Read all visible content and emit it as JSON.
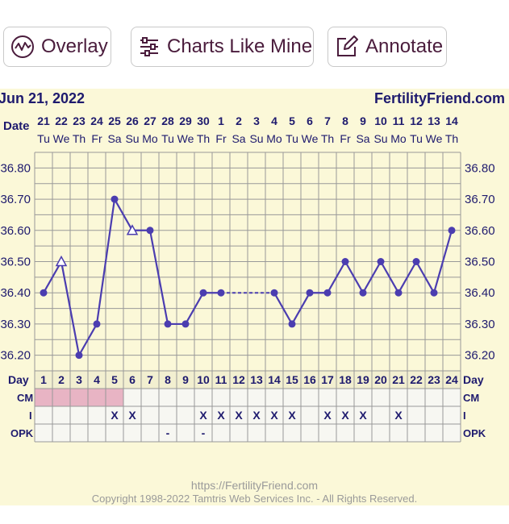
{
  "toolbar": {
    "overlay_label": "Overlay",
    "charts_like_mine_label": "Charts Like Mine",
    "annotate_label": "Annotate"
  },
  "header": {
    "date_title": "Jun 21, 2022",
    "brand": "FertilityFriend.com"
  },
  "footer": {
    "url": "https://FertilityFriend.com",
    "copyright": "Copyright 1998-2022 Tamtris Web Services Inc. - All Rights Reserved."
  },
  "colors": {
    "background": "#fbf8d8",
    "grid": "#999999",
    "line": "#4b3db0",
    "text": "#1e1a6e",
    "cm_highlight": "#e8b4c4"
  },
  "chart_data": {
    "type": "line",
    "title": "",
    "row_labels": {
      "date": "Date",
      "day": "Day",
      "cm": "CM",
      "i": "I",
      "opk": "OPK"
    },
    "dates": [
      "21",
      "22",
      "23",
      "24",
      "25",
      "26",
      "27",
      "28",
      "29",
      "30",
      "1",
      "2",
      "3",
      "4",
      "5",
      "6",
      "7",
      "8",
      "9",
      "10",
      "11",
      "12",
      "13",
      "14"
    ],
    "weekdays": [
      "Tu",
      "We",
      "Th",
      "Fr",
      "Sa",
      "Su",
      "Mo",
      "Tu",
      "We",
      "Th",
      "Fr",
      "Sa",
      "Su",
      "Mo",
      "Tu",
      "We",
      "Th",
      "Fr",
      "Sa",
      "Su",
      "Mo",
      "Tu",
      "We",
      "Th"
    ],
    "days": [
      1,
      2,
      3,
      4,
      5,
      6,
      7,
      8,
      9,
      10,
      11,
      12,
      13,
      14,
      15,
      16,
      17,
      18,
      19,
      20,
      21,
      22,
      23,
      24
    ],
    "y_ticks": [
      "36.80",
      "36.70",
      "36.60",
      "36.50",
      "36.40",
      "36.30",
      "36.20"
    ],
    "ylim": [
      36.15,
      36.85
    ],
    "temperatures": [
      36.4,
      36.5,
      36.2,
      36.3,
      36.7,
      36.6,
      36.6,
      36.3,
      36.3,
      36.4,
      36.4,
      null,
      null,
      36.4,
      36.3,
      36.4,
      36.4,
      36.5,
      36.4,
      36.5,
      36.4,
      36.5,
      36.4,
      36.6
    ],
    "open_markers_days": [
      2,
      6
    ],
    "dashed_segment_days": [
      11,
      14
    ],
    "cm_highlight_days": [
      1,
      2,
      3,
      4,
      5
    ],
    "intercourse": [
      "",
      "",
      "",
      "",
      "X",
      "X",
      "",
      "",
      "",
      "X",
      "X",
      "X",
      "X",
      "X",
      "X",
      "",
      "X",
      "X",
      "X",
      "",
      "X",
      "",
      "",
      ""
    ],
    "opk": [
      "",
      "",
      "",
      "",
      "",
      "",
      "",
      "-",
      "",
      "-",
      "",
      "",
      "",
      "",
      "",
      "",
      "",
      "",
      "",
      "",
      "",
      "",
      "",
      ""
    ]
  }
}
